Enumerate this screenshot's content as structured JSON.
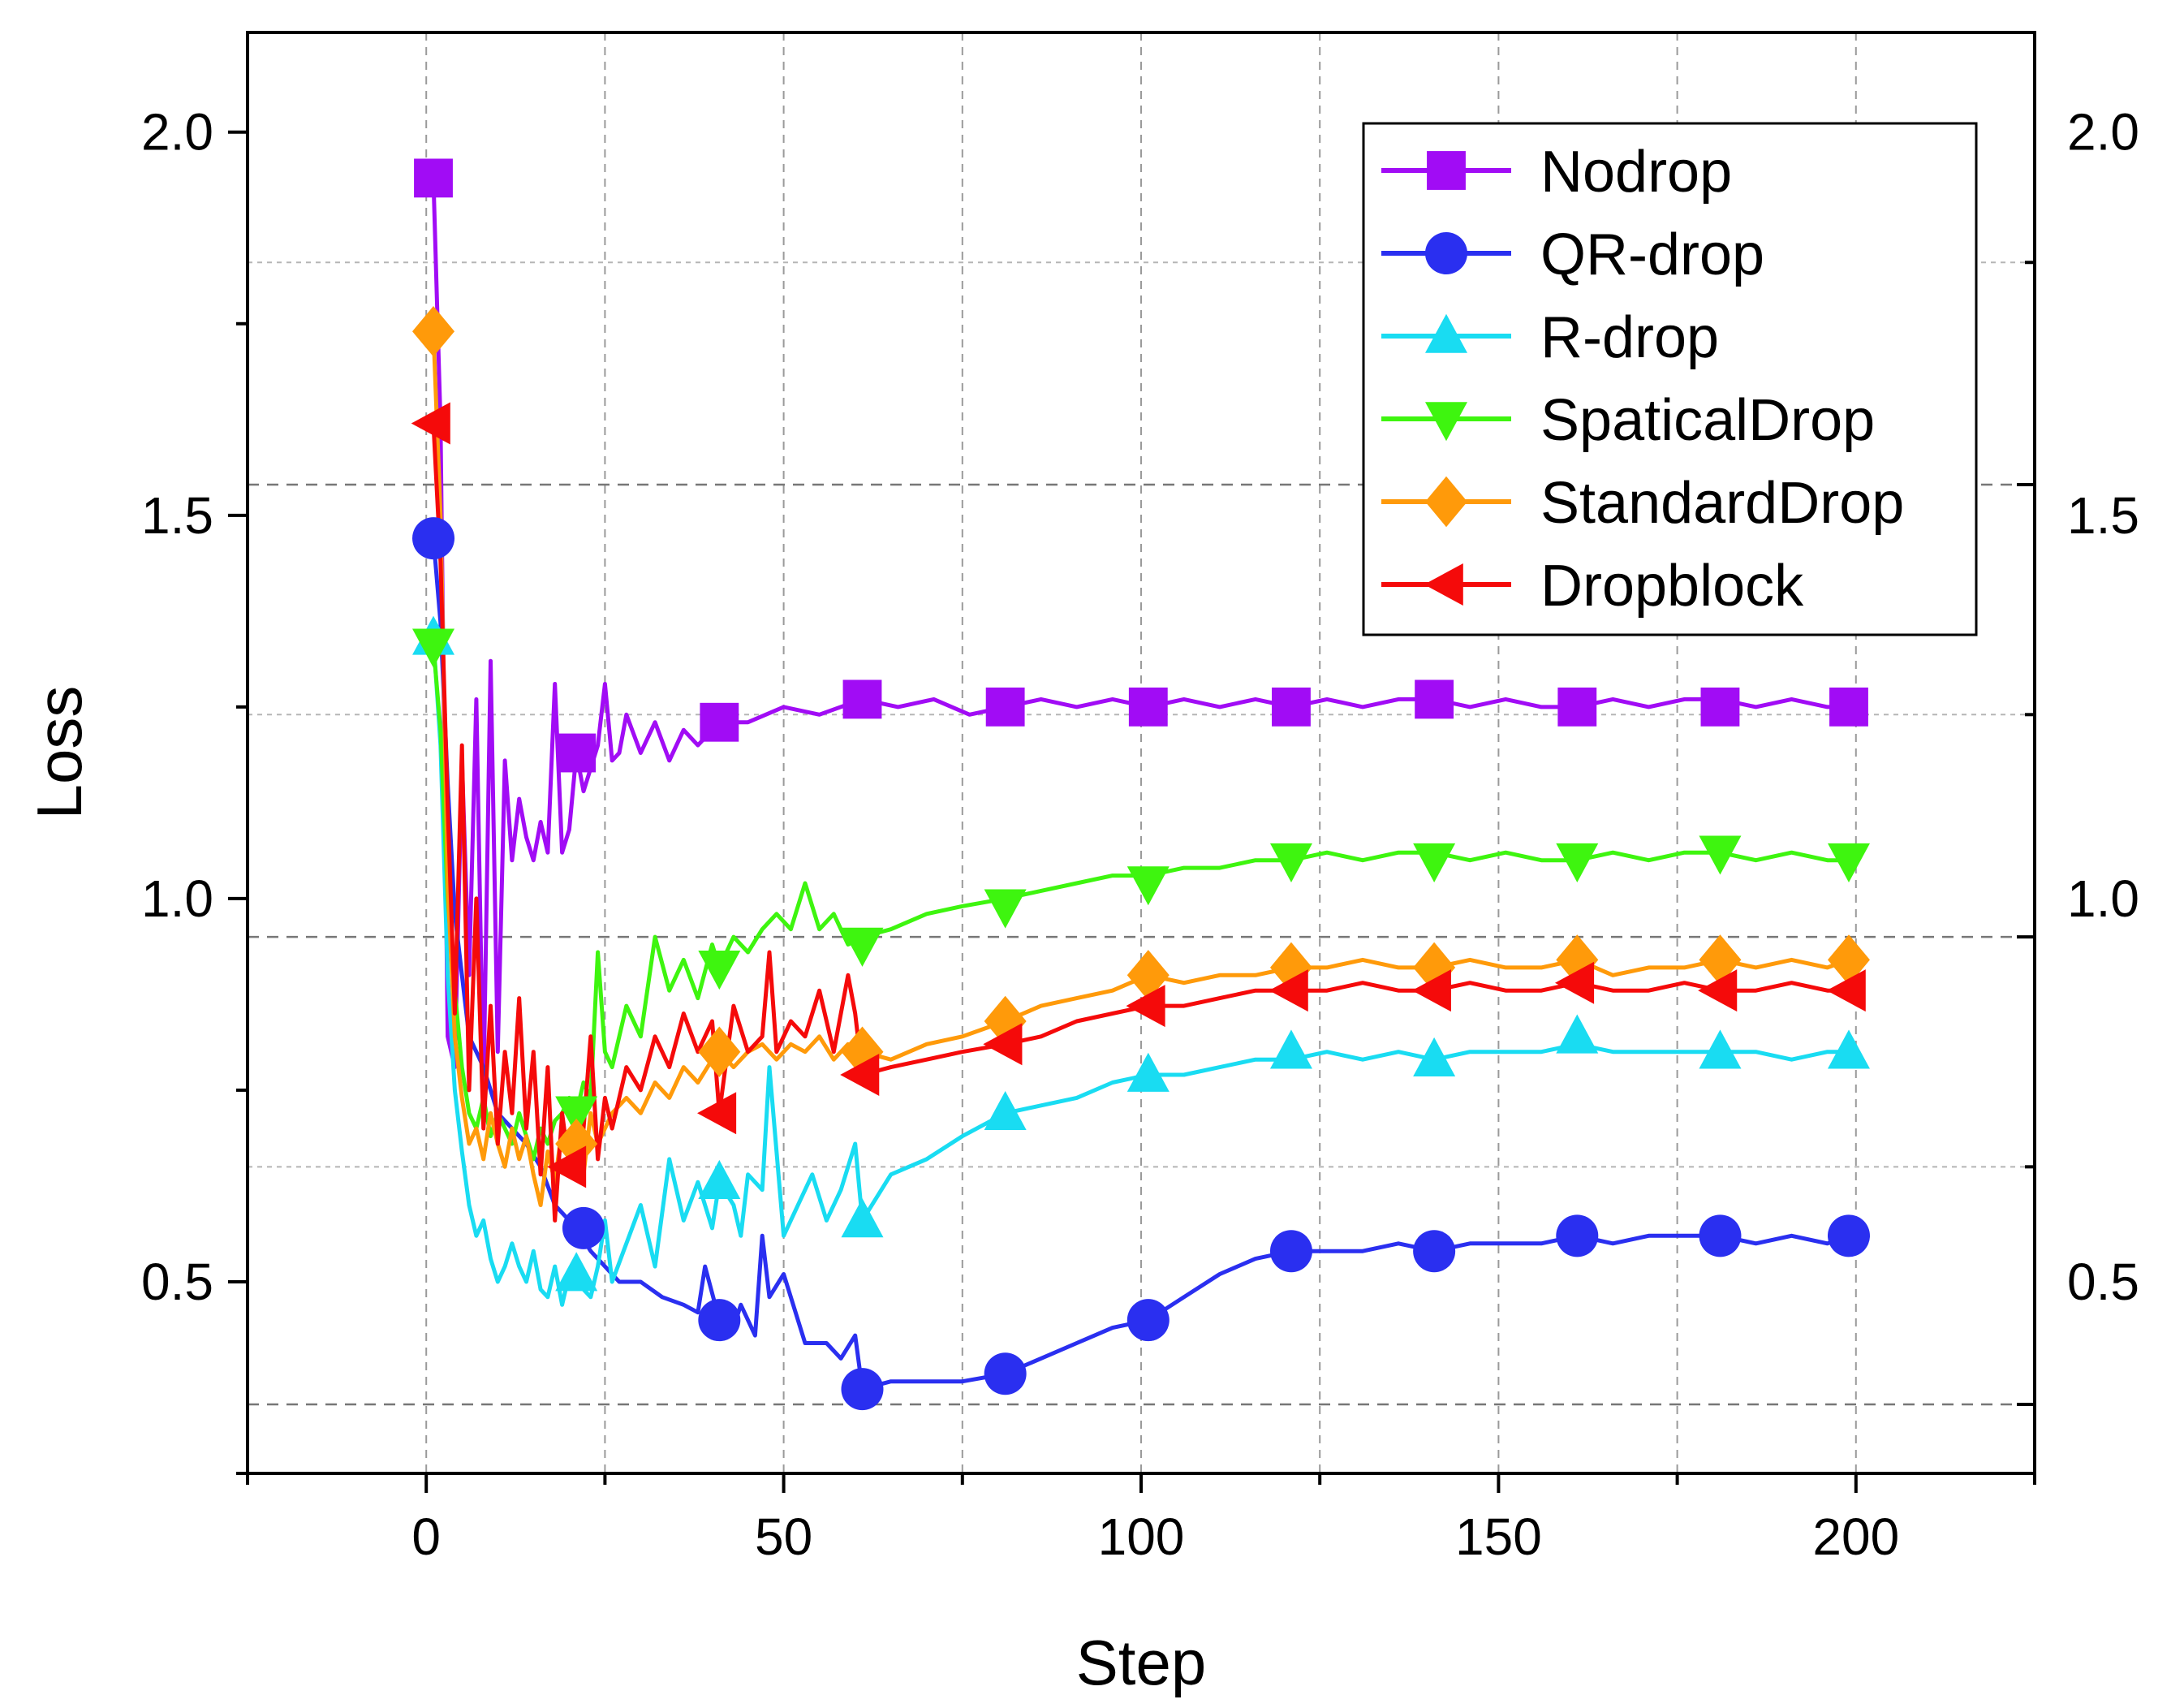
{
  "chart_data": {
    "type": "line",
    "title": "",
    "xlabel": "Step",
    "ylabel": "Loss",
    "xlim": [
      -25,
      225
    ],
    "ylim": [
      0.25,
      2.13
    ],
    "xticks": [
      0,
      50,
      100,
      150,
      200
    ],
    "xtick_labels": [
      "0",
      "50",
      "100",
      "150",
      "200"
    ],
    "yticks": [
      0.5,
      1.0,
      1.5,
      2.0
    ],
    "ytick_labels": [
      "0.5",
      "1.0",
      "1.5",
      "2.0"
    ],
    "right_axis_tick_labels": [
      "0.5",
      "1.0",
      "1.5",
      "2.0"
    ],
    "grid": true,
    "legend_position": "top-right",
    "series": [
      {
        "name": "Nodrop",
        "color": "#a10cf5",
        "marker": "square",
        "x": [
          1,
          2,
          3,
          4,
          5,
          6,
          7,
          8,
          9,
          10,
          11,
          12,
          13,
          14,
          15,
          16,
          17,
          18,
          19,
          20,
          21,
          22,
          23,
          24,
          25,
          26,
          27,
          28,
          30,
          32,
          34,
          36,
          38,
          41,
          45,
          50,
          55,
          61,
          66,
          71,
          76,
          81,
          86,
          91,
          96,
          101,
          106,
          111,
          116,
          121,
          126,
          131,
          136,
          141,
          146,
          151,
          156,
          161,
          166,
          171,
          176,
          181,
          186,
          191,
          196,
          199
        ],
        "values": [
          1.94,
          1.62,
          0.82,
          0.78,
          1.18,
          0.9,
          1.26,
          0.75,
          1.31,
          0.8,
          1.18,
          1.05,
          1.13,
          1.08,
          1.05,
          1.1,
          1.06,
          1.28,
          1.06,
          1.09,
          1.19,
          1.14,
          1.17,
          1.2,
          1.28,
          1.18,
          1.19,
          1.24,
          1.19,
          1.23,
          1.18,
          1.22,
          1.2,
          1.23,
          1.23,
          1.25,
          1.24,
          1.26,
          1.25,
          1.26,
          1.24,
          1.25,
          1.26,
          1.25,
          1.26,
          1.25,
          1.26,
          1.25,
          1.26,
          1.25,
          1.26,
          1.25,
          1.26,
          1.26,
          1.25,
          1.26,
          1.25,
          1.25,
          1.26,
          1.25,
          1.26,
          1.26,
          1.25,
          1.26,
          1.25,
          1.25
        ],
        "marker_x": [
          1,
          21,
          41,
          61,
          81,
          101,
          121,
          141,
          161,
          181,
          199
        ],
        "marker_values": [
          1.94,
          1.19,
          1.23,
          1.26,
          1.25,
          1.25,
          1.25,
          1.26,
          1.25,
          1.25,
          1.25
        ]
      },
      {
        "name": "QR-drop",
        "color": "#2a2ff0",
        "marker": "circle",
        "x": [
          1,
          2,
          3,
          4,
          5,
          6,
          7,
          8,
          9,
          10,
          12,
          14,
          16,
          18,
          20,
          21,
          23,
          25,
          27,
          30,
          33,
          36,
          38,
          39,
          41,
          43,
          44,
          46,
          47,
          48,
          50,
          53,
          56,
          58,
          60,
          61,
          65,
          70,
          75,
          81,
          86,
          91,
          96,
          101,
          106,
          111,
          116,
          121,
          126,
          131,
          136,
          141,
          146,
          151,
          156,
          161,
          166,
          171,
          176,
          181,
          186,
          191,
          196,
          199
        ],
        "values": [
          1.47,
          1.36,
          1.15,
          0.98,
          0.9,
          0.82,
          0.8,
          0.78,
          0.75,
          0.72,
          0.7,
          0.68,
          0.65,
          0.6,
          0.58,
          0.57,
          0.54,
          0.52,
          0.5,
          0.5,
          0.48,
          0.47,
          0.46,
          0.52,
          0.45,
          0.44,
          0.47,
          0.43,
          0.56,
          0.48,
          0.51,
          0.42,
          0.42,
          0.4,
          0.43,
          0.36,
          0.37,
          0.37,
          0.37,
          0.38,
          0.4,
          0.42,
          0.44,
          0.45,
          0.48,
          0.51,
          0.53,
          0.54,
          0.54,
          0.54,
          0.55,
          0.54,
          0.55,
          0.55,
          0.55,
          0.56,
          0.55,
          0.56,
          0.56,
          0.56,
          0.55,
          0.56,
          0.55,
          0.56
        ],
        "marker_x": [
          1,
          22,
          41,
          61,
          81,
          101,
          121,
          141,
          161,
          181,
          199
        ],
        "marker_values": [
          1.47,
          0.57,
          0.45,
          0.36,
          0.38,
          0.45,
          0.54,
          0.54,
          0.56,
          0.56,
          0.56
        ]
      },
      {
        "name": "R-drop",
        "color": "#19dcf2",
        "marker": "triangle-up",
        "x": [
          1,
          2,
          3,
          4,
          5,
          6,
          7,
          8,
          9,
          10,
          11,
          12,
          13,
          14,
          15,
          16,
          17,
          18,
          19,
          20,
          21,
          22,
          23,
          24,
          25,
          26,
          28,
          30,
          32,
          34,
          36,
          38,
          40,
          41,
          43,
          44,
          45,
          47,
          48,
          50,
          52,
          54,
          56,
          58,
          60,
          61,
          65,
          70,
          75,
          81,
          86,
          91,
          96,
          101,
          106,
          111,
          116,
          121,
          126,
          131,
          136,
          141,
          146,
          151,
          156,
          161,
          166,
          171,
          176,
          181,
          186,
          191,
          196,
          199
        ],
        "values": [
          1.34,
          1.2,
          0.9,
          0.75,
          0.67,
          0.6,
          0.56,
          0.58,
          0.53,
          0.5,
          0.52,
          0.55,
          0.52,
          0.5,
          0.54,
          0.49,
          0.48,
          0.52,
          0.47,
          0.51,
          0.52,
          0.49,
          0.48,
          0.52,
          0.58,
          0.5,
          0.55,
          0.6,
          0.52,
          0.66,
          0.58,
          0.63,
          0.57,
          0.63,
          0.6,
          0.56,
          0.64,
          0.62,
          0.78,
          0.56,
          0.6,
          0.64,
          0.58,
          0.62,
          0.68,
          0.58,
          0.64,
          0.66,
          0.69,
          0.72,
          0.73,
          0.74,
          0.76,
          0.77,
          0.77,
          0.78,
          0.79,
          0.79,
          0.8,
          0.79,
          0.8,
          0.79,
          0.8,
          0.8,
          0.8,
          0.81,
          0.8,
          0.8,
          0.8,
          0.8,
          0.8,
          0.79,
          0.8,
          0.8
        ],
        "marker_x": [
          1,
          21,
          41,
          61,
          81,
          101,
          121,
          141,
          161,
          181,
          199
        ],
        "marker_values": [
          1.34,
          0.51,
          0.63,
          0.58,
          0.72,
          0.77,
          0.8,
          0.79,
          0.82,
          0.8,
          0.8
        ]
      },
      {
        "name": "SpaticalDrop",
        "color": "#3ef50f",
        "marker": "triangle-down",
        "x": [
          1,
          2,
          3,
          4,
          5,
          6,
          7,
          8,
          9,
          10,
          11,
          12,
          13,
          14,
          15,
          16,
          17,
          18,
          19,
          20,
          21,
          22,
          23,
          24,
          25,
          26,
          28,
          30,
          32,
          34,
          36,
          38,
          40,
          41,
          43,
          45,
          47,
          49,
          51,
          53,
          55,
          57,
          59,
          61,
          65,
          70,
          75,
          81,
          86,
          91,
          96,
          101,
          106,
          111,
          116,
          121,
          126,
          131,
          136,
          141,
          146,
          151,
          156,
          161,
          166,
          171,
          176,
          181,
          186,
          191,
          196,
          199
        ],
        "values": [
          1.33,
          1.22,
          1.0,
          0.88,
          0.78,
          0.72,
          0.7,
          0.74,
          0.69,
          0.72,
          0.7,
          0.68,
          0.72,
          0.69,
          0.66,
          0.7,
          0.68,
          0.71,
          0.72,
          0.74,
          0.72,
          0.76,
          0.74,
          0.93,
          0.8,
          0.78,
          0.86,
          0.82,
          0.95,
          0.88,
          0.92,
          0.87,
          0.94,
          0.91,
          0.95,
          0.93,
          0.96,
          0.98,
          0.96,
          1.02,
          0.96,
          0.98,
          0.94,
          0.95,
          0.96,
          0.98,
          0.99,
          1.0,
          1.01,
          1.02,
          1.03,
          1.03,
          1.04,
          1.04,
          1.05,
          1.05,
          1.06,
          1.05,
          1.06,
          1.06,
          1.05,
          1.06,
          1.05,
          1.05,
          1.06,
          1.05,
          1.06,
          1.06,
          1.05,
          1.06,
          1.05,
          1.05
        ],
        "marker_x": [
          1,
          21,
          41,
          61,
          81,
          101,
          121,
          141,
          161,
          181,
          199
        ],
        "marker_values": [
          1.33,
          0.72,
          0.91,
          0.94,
          0.99,
          1.02,
          1.05,
          1.05,
          1.05,
          1.06,
          1.05
        ]
      },
      {
        "name": "StandardDrop",
        "color": "#ff9a0a",
        "marker": "diamond",
        "x": [
          1,
          2,
          3,
          4,
          5,
          6,
          7,
          8,
          9,
          10,
          11,
          12,
          13,
          14,
          15,
          16,
          17,
          18,
          19,
          20,
          21,
          22,
          23,
          24,
          25,
          26,
          28,
          30,
          32,
          34,
          36,
          38,
          40,
          41,
          43,
          45,
          47,
          49,
          51,
          53,
          55,
          57,
          59,
          61,
          65,
          70,
          75,
          81,
          86,
          91,
          96,
          101,
          106,
          111,
          116,
          121,
          126,
          131,
          136,
          141,
          146,
          151,
          156,
          161,
          166,
          171,
          176,
          181,
          186,
          191,
          196,
          199
        ],
        "values": [
          1.74,
          1.5,
          1.02,
          0.82,
          0.74,
          0.68,
          0.7,
          0.66,
          0.72,
          0.68,
          0.65,
          0.7,
          0.66,
          0.69,
          0.64,
          0.6,
          0.67,
          0.63,
          0.7,
          0.66,
          0.68,
          0.64,
          0.72,
          0.68,
          0.7,
          0.72,
          0.74,
          0.72,
          0.76,
          0.74,
          0.78,
          0.76,
          0.79,
          0.8,
          0.78,
          0.8,
          0.81,
          0.79,
          0.81,
          0.8,
          0.82,
          0.79,
          0.81,
          0.8,
          0.79,
          0.81,
          0.82,
          0.84,
          0.86,
          0.87,
          0.88,
          0.9,
          0.89,
          0.9,
          0.9,
          0.91,
          0.91,
          0.92,
          0.91,
          0.91,
          0.92,
          0.91,
          0.91,
          0.92,
          0.9,
          0.91,
          0.91,
          0.92,
          0.91,
          0.92,
          0.91,
          0.92
        ],
        "marker_x": [
          1,
          21,
          41,
          61,
          81,
          101,
          121,
          141,
          161,
          181,
          199
        ],
        "marker_values": [
          1.74,
          0.68,
          0.8,
          0.8,
          0.84,
          0.9,
          0.91,
          0.91,
          0.92,
          0.92,
          0.92
        ]
      },
      {
        "name": "Dropblock",
        "color": "#f50a0a",
        "marker": "triangle-left",
        "x": [
          1,
          2,
          3,
          4,
          5,
          6,
          7,
          8,
          9,
          10,
          11,
          12,
          13,
          14,
          15,
          16,
          17,
          18,
          19,
          20,
          21,
          22,
          23,
          24,
          25,
          26,
          28,
          30,
          32,
          34,
          36,
          38,
          40,
          41,
          43,
          45,
          47,
          48,
          49,
          51,
          53,
          55,
          57,
          59,
          60,
          61,
          65,
          70,
          75,
          81,
          86,
          91,
          96,
          101,
          106,
          111,
          116,
          121,
          126,
          131,
          136,
          141,
          146,
          151,
          156,
          161,
          166,
          171,
          176,
          181,
          186,
          191,
          196,
          199
        ],
        "values": [
          1.62,
          1.44,
          1.12,
          0.85,
          1.2,
          0.75,
          1.0,
          0.7,
          0.86,
          0.68,
          0.8,
          0.72,
          0.87,
          0.7,
          0.8,
          0.64,
          0.78,
          0.58,
          0.72,
          0.65,
          0.68,
          0.7,
          0.82,
          0.66,
          0.74,
          0.7,
          0.78,
          0.75,
          0.82,
          0.78,
          0.85,
          0.8,
          0.84,
          0.72,
          0.86,
          0.8,
          0.82,
          0.93,
          0.8,
          0.84,
          0.82,
          0.88,
          0.8,
          0.9,
          0.85,
          0.77,
          0.78,
          0.79,
          0.8,
          0.81,
          0.82,
          0.84,
          0.85,
          0.86,
          0.86,
          0.87,
          0.88,
          0.88,
          0.88,
          0.89,
          0.88,
          0.88,
          0.89,
          0.88,
          0.88,
          0.89,
          0.88,
          0.88,
          0.89,
          0.88,
          0.88,
          0.89,
          0.88,
          0.88
        ],
        "marker_x": [
          1,
          20,
          41,
          61,
          81,
          101,
          121,
          141,
          161,
          181,
          199
        ],
        "marker_values": [
          1.62,
          0.65,
          0.72,
          0.77,
          0.81,
          0.86,
          0.88,
          0.88,
          0.89,
          0.88,
          0.88
        ]
      }
    ]
  }
}
